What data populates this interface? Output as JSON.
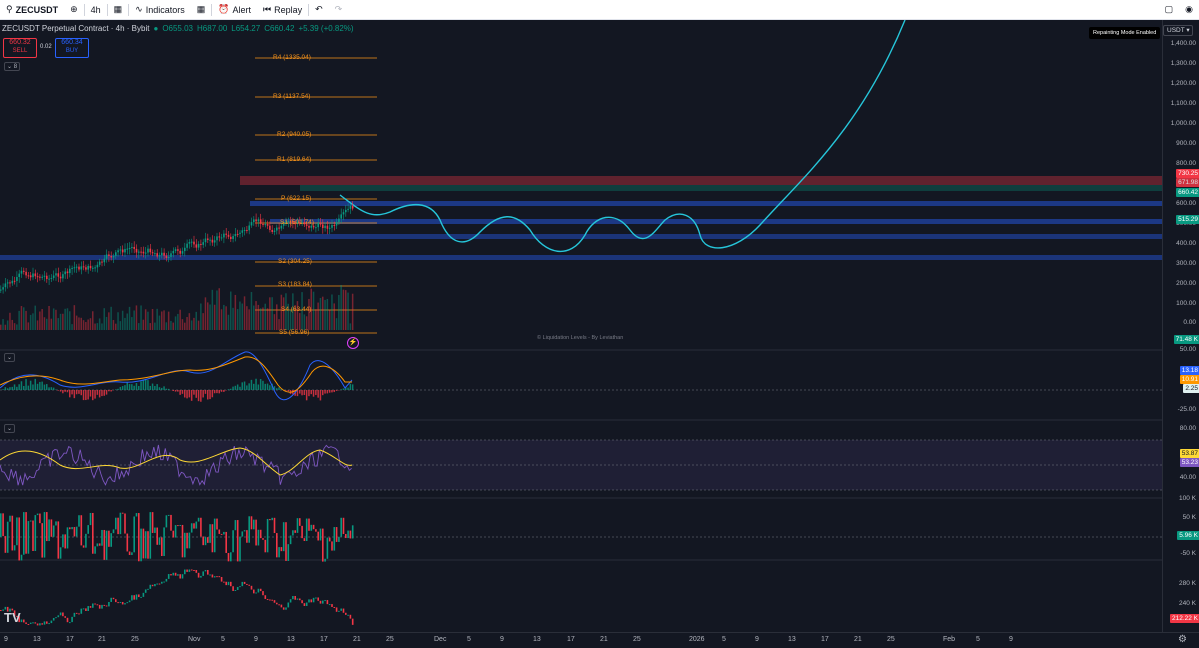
{
  "toolbar": {
    "symbol": "ZECUSDT",
    "interval": "4h",
    "indicators_label": "Indicators",
    "alert_label": "Alert",
    "replay_label": "Replay"
  },
  "legend": {
    "title": "ZECUSDT Perpetual Contract · 4h · Bybit",
    "open": "O655.03",
    "high": "H687.00",
    "low": "L654.27",
    "close": "C660.42",
    "change": "+5.39 (+0.82%)",
    "sell_price": "660.32",
    "sell_label": "SELL",
    "spread": "0.02",
    "buy_price": "660.34",
    "buy_label": "BUY",
    "indicator_count": "8"
  },
  "repaint_badge": "Repainting Mode Enabled",
  "currency_select": "USDT",
  "pivots": [
    {
      "label": "R4 (1335.04)"
    },
    {
      "label": "R3 (1137.54)"
    },
    {
      "label": "R2 (940.05)"
    },
    {
      "label": "R1 (819.64)"
    },
    {
      "label": "P (622.15)"
    },
    {
      "label": "S1 (501.74)"
    },
    {
      "label": "S2 (304.25)"
    },
    {
      "label": "S3 (183.84)"
    },
    {
      "label": "S4 (63.44)"
    },
    {
      "label": "S5 (56.96)"
    }
  ],
  "credit": "© Liquidation Levels - By Leviathan",
  "price_scale": [
    "1,400.00",
    "1,300.00",
    "1,200.00",
    "1,100.00",
    "1,000.00",
    "900.00",
    "800.00",
    "600.00",
    "500.00",
    "400.00",
    "300.00",
    "200.00",
    "100.00",
    "0.00"
  ],
  "price_tags": {
    "t1": "730.25",
    "t2": "671.98",
    "t3": "660.42",
    "t4": "515.29",
    "t5": "71.48 K"
  },
  "macd": {
    "scale": [
      "50.00",
      "-25.00"
    ],
    "tags": [
      "13.18",
      "10.91",
      "2.25"
    ]
  },
  "rsi": {
    "scale": [
      "80.00",
      "40.00"
    ],
    "tags": [
      "53.87",
      "53.23"
    ]
  },
  "vol_delta": {
    "scale": [
      "100 K",
      "50 K",
      "-50 K"
    ],
    "tag": "5.96 K"
  },
  "cvd": {
    "scale": [
      "280 K",
      "240 K"
    ],
    "tag": "212.22 K"
  },
  "time_axis": [
    "9",
    "13",
    "17",
    "21",
    "25",
    "Nov",
    "5",
    "9",
    "13",
    "17",
    "21",
    "25",
    "Dec",
    "5",
    "9",
    "13",
    "17",
    "21",
    "25",
    "2026",
    "5",
    "9",
    "13",
    "17",
    "21",
    "25",
    "Feb",
    "5",
    "9"
  ],
  "colors": {
    "up": "#089981",
    "down": "#f23645",
    "projection": "#26c6da",
    "pivot": "#f7931a"
  },
  "icons": [
    "search-icon",
    "add-icon",
    "candles-icon",
    "indicators-icon",
    "layout-icon",
    "alert-icon",
    "replay-icon",
    "undo-icon",
    "redo-icon",
    "fullscreen-icon",
    "eye-icon"
  ]
}
